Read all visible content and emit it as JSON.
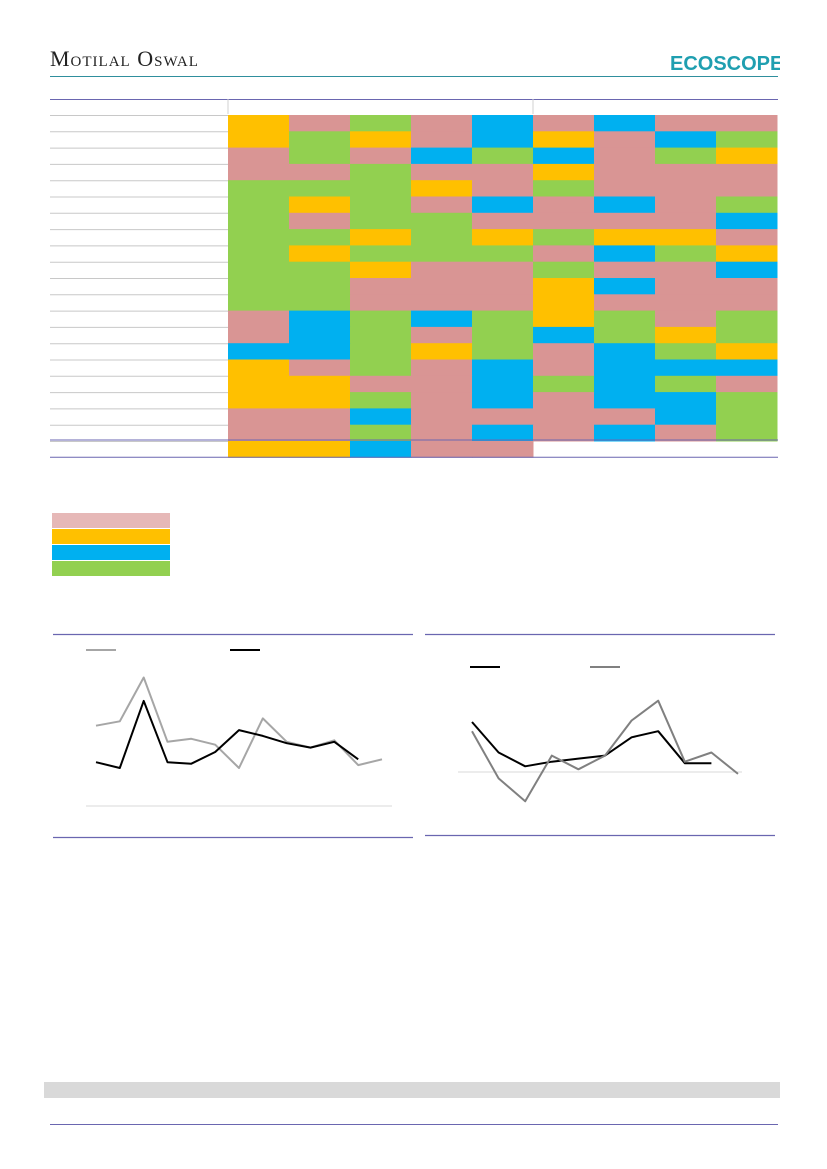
{
  "header": {
    "brand_text": "Motilal Oswal",
    "logo_text": "ECOSCOPE",
    "colors": {
      "brand_rule": "#2f8f9d",
      "logo_teal": "#1f9fb0"
    }
  },
  "heatmap": {
    "palette": {
      "P": "#d99594",
      "Y": "#ffc000",
      "B": "#00b0f0",
      "G": "#92d050"
    },
    "rows": [
      [
        "Y",
        "P",
        "G",
        "P",
        "B",
        "P",
        "B",
        "P",
        "P"
      ],
      [
        "Y",
        "G",
        "Y",
        "P",
        "B",
        "Y",
        "P",
        "B",
        "G"
      ],
      [
        "P",
        "G",
        "P",
        "B",
        "G",
        "B",
        "P",
        "G",
        "Y"
      ],
      [
        "P",
        "P",
        "G",
        "P",
        "P",
        "Y",
        "P",
        "P",
        "P"
      ],
      [
        "G",
        "G",
        "G",
        "Y",
        "P",
        "G",
        "P",
        "P",
        "P"
      ],
      [
        "G",
        "Y",
        "G",
        "P",
        "B",
        "P",
        "B",
        "P",
        "G"
      ],
      [
        "G",
        "P",
        "G",
        "G",
        "P",
        "P",
        "P",
        "P",
        "B"
      ],
      [
        "G",
        "G",
        "Y",
        "G",
        "Y",
        "G",
        "Y",
        "Y",
        "P"
      ],
      [
        "G",
        "Y",
        "G",
        "G",
        "G",
        "P",
        "B",
        "G",
        "Y"
      ],
      [
        "G",
        "G",
        "Y",
        "P",
        "P",
        "G",
        "P",
        "P",
        "B"
      ],
      [
        "G",
        "G",
        "P",
        "P",
        "P",
        "Y",
        "B",
        "P",
        "P"
      ],
      [
        "G",
        "G",
        "P",
        "P",
        "P",
        "Y",
        "P",
        "P",
        "P"
      ],
      [
        "P",
        "B",
        "G",
        "B",
        "G",
        "Y",
        "G",
        "P",
        "G"
      ],
      [
        "P",
        "B",
        "G",
        "P",
        "G",
        "B",
        "G",
        "Y",
        "G"
      ],
      [
        "B",
        "B",
        "G",
        "Y",
        "G",
        "P",
        "B",
        "G",
        "Y"
      ],
      [
        "Y",
        "P",
        "G",
        "P",
        "B",
        "P",
        "B",
        "B",
        "B"
      ],
      [
        "Y",
        "Y",
        "P",
        "P",
        "B",
        "G",
        "B",
        "G",
        "P"
      ],
      [
        "Y",
        "Y",
        "G",
        "P",
        "B",
        "P",
        "B",
        "B",
        "G"
      ],
      [
        "P",
        "P",
        "B",
        "P",
        "P",
        "P",
        "P",
        "B",
        "G"
      ],
      [
        "P",
        "P",
        "G",
        "P",
        "B",
        "P",
        "B",
        "P",
        "G"
      ],
      [
        "Y",
        "Y",
        "B",
        "P",
        "P",
        "",
        "",
        "",
        ""
      ]
    ]
  },
  "legend": {
    "swatches": [
      "#e6b8b7",
      "#ffc000",
      "#00b0f0",
      "#92d050"
    ]
  },
  "chart_data": [
    {
      "type": "line",
      "series": [
        {
          "color": "#a6a6a6",
          "values": [
            55,
            58,
            88,
            44,
            46,
            42,
            26,
            60,
            44,
            40,
            45,
            28,
            32
          ]
        },
        {
          "color": "#000000",
          "values": [
            30,
            26,
            72,
            30,
            29,
            37,
            52,
            48,
            43,
            40,
            44,
            32
          ]
        }
      ],
      "ylim": [
        0,
        100
      ]
    },
    {
      "type": "line",
      "series": [
        {
          "color": "#000000",
          "values": [
            34,
            14,
            5,
            8,
            10,
            12,
            24,
            28,
            7,
            7
          ]
        },
        {
          "color": "#808080",
          "values": [
            28,
            -3,
            -18,
            12,
            3,
            12,
            35,
            48,
            8,
            14,
            0
          ]
        }
      ],
      "ylim": [
        -25,
        55
      ]
    }
  ]
}
